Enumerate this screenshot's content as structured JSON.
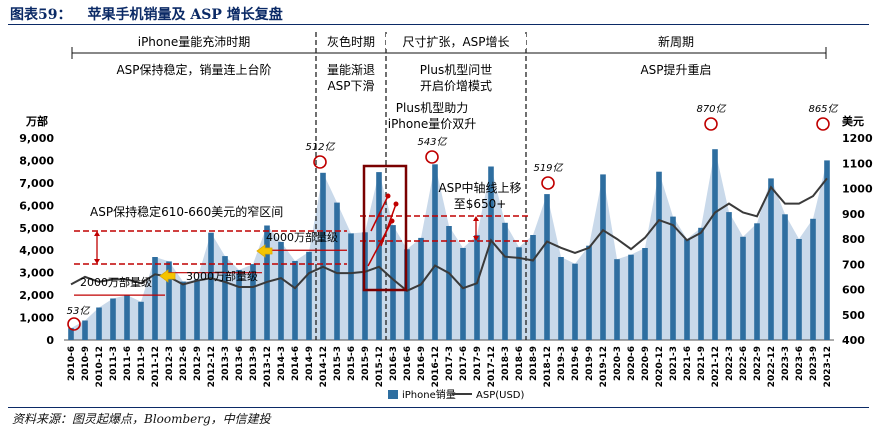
{
  "header": {
    "figure_label": "图表59：",
    "title": "苹果手机销量及 ASP 增长复盘"
  },
  "source": "资料来源：图灵起爆点，Bloomberg，中信建投",
  "chart_data": {
    "type": "bar",
    "y_left_unit": "万部",
    "y_right_unit": "美元",
    "ylim_left": [
      0,
      9000
    ],
    "ylim_right": [
      400,
      1200
    ],
    "y_left_ticks": [
      "0",
      "1,000",
      "2,000",
      "3,000",
      "4,000",
      "5,000",
      "6,000",
      "7,000",
      "8,000",
      "9,000"
    ],
    "y_right_ticks": [
      "400",
      "500",
      "600",
      "700",
      "800",
      "900",
      "1000",
      "1100",
      "1200"
    ],
    "categories": [
      "2010-6",
      "2010-9",
      "2010-12",
      "2011-3",
      "2011-6",
      "2011-9",
      "2011-12",
      "2012-3",
      "2012-6",
      "2012-9",
      "2012-12",
      "2013-3",
      "2013-6",
      "2013-9",
      "2013-12",
      "2014-3",
      "2014-6",
      "2014-9",
      "2014-12",
      "2015-3",
      "2015-6",
      "2015-9",
      "2015-12",
      "2016-3",
      "2016-6",
      "2016-9",
      "2016-12",
      "2017-3",
      "2017-6",
      "2017-9",
      "2017-12",
      "2018-3",
      "2018-6",
      "2018-9",
      "2018-12",
      "2019-3",
      "2019-6",
      "2019-9",
      "2019-12",
      "2020-3",
      "2020-6",
      "2020-9",
      "2020-12",
      "2021-3",
      "2021-6",
      "2021-9",
      "2021-12",
      "2022-3",
      "2022-6",
      "2022-9",
      "2022-12",
      "2023-3",
      "2023-6",
      "2023-9",
      "2023-12"
    ],
    "legend": {
      "bar": "iPhone销量",
      "line": "ASP(USD)"
    },
    "series": [
      {
        "name": "iPhone销量",
        "axis": "left",
        "values": [
          530,
          870,
          1450,
          1850,
          2000,
          1700,
          3700,
          3500,
          2600,
          2690,
          4780,
          3740,
          3120,
          3380,
          5100,
          4370,
          3520,
          3930,
          7450,
          6120,
          4750,
          4800,
          7480,
          5120,
          4040,
          4550,
          7830,
          5080,
          4100,
          4670,
          7730,
          5220,
          4130,
          4680,
          6500,
          3700,
          3400,
          4200,
          7380,
          3600,
          3800,
          4100,
          7500,
          5500,
          4500,
          5000,
          8500,
          5700,
          4600,
          5200,
          7200,
          5600,
          4500,
          5400,
          8000
        ]
      },
      {
        "name": "ASP(USD)",
        "axis": "right",
        "values": [
          620,
          650,
          630,
          640,
          640,
          625,
          660,
          650,
          620,
          635,
          645,
          630,
          610,
          610,
          630,
          645,
          605,
          665,
          690,
          665,
          665,
          670,
          690,
          640,
          595,
          620,
          695,
          665,
          605,
          625,
          795,
          730,
          725,
          715,
          790,
          765,
          745,
          765,
          835,
          800,
          760,
          805,
          875,
          855,
          795,
          825,
          905,
          940,
          905,
          890,
          1005,
          940,
          940,
          970,
          1040
        ]
      }
    ],
    "area_series": {
      "name": "",
      "values": [
        530,
        870,
        1450,
        1850,
        2000,
        1700,
        3700,
        3500,
        2600,
        2690,
        4780,
        3740,
        3120,
        3380,
        5100,
        4370,
        3520,
        3930,
        7450,
        6120,
        4750,
        4800,
        7480,
        5120,
        4040,
        4550,
        7830,
        5080,
        4100,
        4670,
        7730,
        5220,
        4130,
        4680,
        6500,
        3700,
        3400,
        4200,
        7380,
        3600,
        3800,
        4100,
        7500,
        5500,
        4500,
        5000,
        8500,
        5700,
        4600,
        5200,
        7200,
        5600,
        4500,
        5400,
        8000
      ]
    },
    "phases": [
      {
        "name": "iPhone量能充沛时期",
        "desc": "ASP保持稳定，销量连上台阶"
      },
      {
        "name": "灰色时期",
        "desc": "量能渐退\nASP下滑"
      },
      {
        "name": "尺寸扩张，ASP增长",
        "desc": "Plus机型问世\n开启价增模式"
      },
      {
        "name": "新周期",
        "desc": "ASP提升重启"
      }
    ],
    "annotations": {
      "asp_band": "ASP保持稳定610-660美元的窄区间",
      "level_2000": "2000万部量级",
      "level_3000": "3000万部量级",
      "level_4000": "4000万部量级",
      "plus_helper": "Plus机型助力\niPhone量价双升",
      "asp_move": "ASP中轴线上移\n至$650+"
    },
    "peaks": [
      {
        "label": "53亿",
        "index": 0
      },
      {
        "label": "512亿",
        "index": 18
      },
      {
        "label": "543亿",
        "index": 26
      },
      {
        "label": "519亿",
        "index": 34
      },
      {
        "label": "870亿",
        "index": 46
      },
      {
        "label": "865亿",
        "index": 54
      }
    ],
    "colors": {
      "bar": "#2e6ea0",
      "area": "#c9d9ea",
      "line": "#3a3a3a",
      "accent": "#c00000",
      "title": "#0b2a66"
    }
  }
}
